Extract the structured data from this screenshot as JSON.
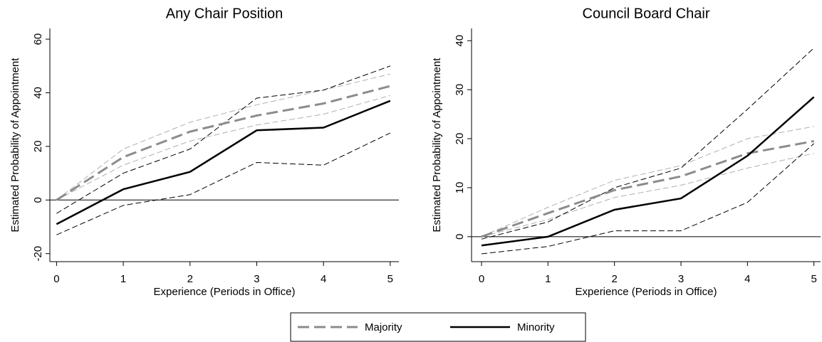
{
  "chart_data": [
    {
      "type": "line",
      "title": "Any Chair Position",
      "xlabel": "Experience (Periods in Office)",
      "ylabel": "Estimated Probability of Appointment",
      "x": [
        0,
        1,
        2,
        3,
        4,
        5
      ],
      "xlim": [
        -0.1,
        5.13
      ],
      "xticks": [
        0,
        1,
        2,
        3,
        4,
        5
      ],
      "ylim": [
        -23,
        64
      ],
      "yticks": [
        -20,
        0,
        20,
        40,
        60
      ],
      "hline": 0,
      "series": [
        {
          "name": "Majority",
          "color": "#8c8c8c",
          "dashed": true,
          "values": [
            0,
            16,
            25.5,
            31.5,
            36,
            42.5
          ],
          "ci_upper": [
            0,
            19,
            29,
            35.5,
            41,
            47
          ],
          "ci_lower": [
            0,
            13,
            22,
            28,
            32,
            39
          ]
        },
        {
          "name": "Minority",
          "color": "#000000",
          "dashed": false,
          "values": [
            -9,
            4,
            10.5,
            26,
            27,
            37
          ],
          "ci_upper": [
            -5,
            10,
            19,
            38,
            41,
            50
          ],
          "ci_lower": [
            -13,
            -2,
            2,
            14,
            13,
            25
          ]
        }
      ]
    },
    {
      "type": "line",
      "title": "Council Board Chair",
      "xlabel": "Experience (Periods in Office)",
      "ylabel": "Estimated Probability of Appointment",
      "x": [
        0,
        1,
        2,
        3,
        4,
        5
      ],
      "xlim": [
        -0.15,
        5.1
      ],
      "xticks": [
        0,
        1,
        2,
        3,
        4,
        5
      ],
      "ylim": [
        -5.1,
        42.5
      ],
      "yticks": [
        0,
        10,
        20,
        30,
        40
      ],
      "hline": 0,
      "series": [
        {
          "color": "#8c8c8c",
          "dashed": true,
          "values": [
            0,
            4.8,
            9.5,
            12.3,
            17,
            19.5
          ],
          "ci_upper": [
            0,
            6,
            11.5,
            14.5,
            20,
            22.5
          ],
          "ci_lower": [
            0,
            3.5,
            8,
            10.5,
            14,
            17
          ]
        },
        {
          "color": "#000000",
          "dashed": false,
          "values": [
            -1.8,
            0,
            5.5,
            7.8,
            16.5,
            28.5
          ],
          "ci_upper": [
            -0.5,
            3,
            10,
            14,
            26,
            38.5
          ],
          "ci_lower": [
            -3.5,
            -2,
            1.2,
            1.2,
            7,
            19
          ]
        }
      ]
    }
  ]
}
